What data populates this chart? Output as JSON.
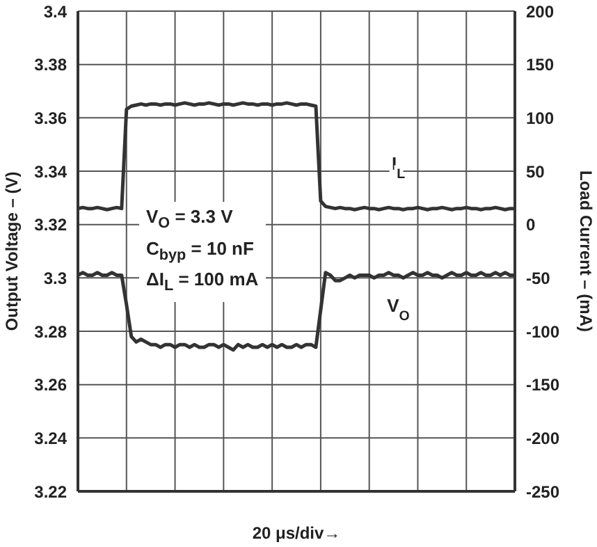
{
  "chart_data": {
    "type": "line",
    "ylabel": "Output Voltage – (V)",
    "y2label": "Load Current – (mA)",
    "xlabel": "20 μs/div→",
    "annotations": [
      "V$_{O}$ = 3.3 V",
      "C$_{byp}$ = 10 nF",
      "ΔI$_{L}$ = 100 mA"
    ],
    "categories": [
      null,
      null,
      null,
      null,
      null,
      null,
      null,
      null,
      null,
      null,
      null,
      null,
      null,
      null,
      null,
      null,
      null,
      null,
      null,
      null,
      null,
      null,
      null,
      null,
      null,
      null,
      null,
      null,
      null,
      null,
      null,
      null,
      null,
      null,
      null,
      null,
      null,
      null,
      null,
      null,
      null,
      null,
      null,
      null,
      null,
      null,
      null,
      null,
      null,
      null,
      null,
      null,
      null,
      null,
      null,
      null,
      null,
      null,
      null,
      null,
      null,
      null,
      null,
      null,
      null,
      null,
      null,
      null,
      null,
      null,
      null,
      null,
      null,
      null,
      null,
      null,
      null,
      null,
      null,
      null,
      null,
      null,
      null,
      null,
      null,
      null,
      null,
      null,
      null,
      null,
      null
    ],
    "series": [
      {
        "name": "I$_{L}$",
        "color": "#333333",
        "axis": "y2",
        "values": [
          15,
          16,
          15,
          15,
          16,
          15,
          14,
          15,
          16,
          15,
          108,
          111,
          112,
          113,
          112,
          113,
          113,
          112,
          113,
          113,
          112,
          113,
          114,
          113,
          112,
          113,
          113,
          114,
          113,
          112,
          113,
          113,
          112,
          113,
          114,
          113,
          113,
          112,
          113,
          113,
          112,
          113,
          113,
          114,
          113,
          112,
          113,
          113,
          112,
          111,
          22,
          17,
          16,
          15,
          16,
          15,
          15,
          14,
          15,
          16,
          15,
          15,
          14,
          15,
          16,
          15,
          15,
          14,
          15,
          15,
          16,
          15,
          14,
          15,
          15,
          16,
          15,
          14,
          15,
          15,
          16,
          15,
          15,
          14,
          15,
          15,
          16,
          15,
          14,
          15,
          15
        ]
      },
      {
        "name": "V$_{O}$",
        "color": "#333333",
        "values": [
          3.301,
          3.302,
          3.301,
          3.301,
          3.302,
          3.301,
          3.301,
          3.302,
          3.301,
          3.301,
          3.29,
          3.278,
          3.276,
          3.277,
          3.276,
          3.275,
          3.275,
          3.274,
          3.275,
          3.275,
          3.274,
          3.275,
          3.275,
          3.274,
          3.275,
          3.274,
          3.274,
          3.275,
          3.275,
          3.274,
          3.275,
          3.274,
          3.273,
          3.275,
          3.274,
          3.275,
          3.274,
          3.274,
          3.275,
          3.274,
          3.275,
          3.274,
          3.275,
          3.274,
          3.274,
          3.275,
          3.274,
          3.275,
          3.275,
          3.274,
          3.288,
          3.302,
          3.301,
          3.299,
          3.299,
          3.3,
          3.301,
          3.3,
          3.301,
          3.301,
          3.301,
          3.3,
          3.301,
          3.301,
          3.302,
          3.301,
          3.301,
          3.3,
          3.301,
          3.302,
          3.301,
          3.301,
          3.302,
          3.301,
          3.301,
          3.3,
          3.301,
          3.302,
          3.301,
          3.301,
          3.302,
          3.301,
          3.301,
          3.302,
          3.301,
          3.301,
          3.302,
          3.301,
          3.302,
          3.301,
          3.301
        ]
      }
    ],
    "ylim": [
      3.22,
      3.4
    ],
    "yticks": [
      3.22,
      3.24,
      3.26,
      3.28,
      3.3,
      3.32,
      3.34,
      3.36,
      3.38,
      3.4
    ],
    "y2lim": [
      -250,
      200
    ],
    "y2ticks": [
      -250,
      -200,
      -150,
      -100,
      -50,
      0,
      50,
      100,
      150,
      200
    ],
    "grid": true,
    "marker": "none",
    "line_style": "solid"
  }
}
